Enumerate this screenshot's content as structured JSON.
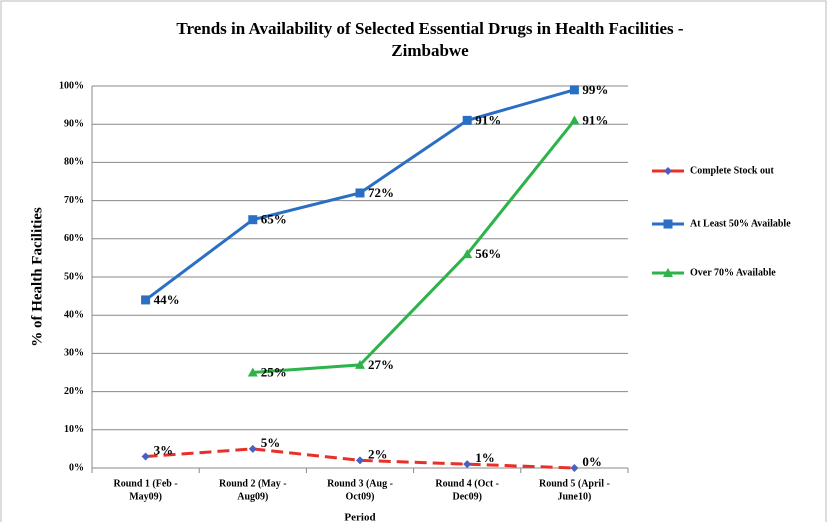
{
  "chart_data": {
    "type": "line",
    "title": [
      "Trends in Availability of Selected Essential Drugs in Health Facilities -",
      "Zimbabwe"
    ],
    "y_label": "% of Health Facilities",
    "x_label": "Period",
    "categories": [
      [
        "Round 1 (Feb -",
        "May09)"
      ],
      [
        "Round 2 (May -",
        "Aug09)"
      ],
      [
        "Round 3 (Aug -",
        "Oct09)"
      ],
      [
        "Round 4 (Oct -",
        "Dec09)"
      ],
      [
        "Round 5 (April -",
        "June10)"
      ]
    ],
    "series": [
      {
        "name": "Complete Stock out",
        "color": "#e8302a",
        "dash": true,
        "marker": "diamond",
        "marker_color": "#4a5fc1",
        "values": [
          3,
          5,
          2,
          1,
          0
        ],
        "value_labels": [
          "3%",
          "5%",
          "2%",
          "1%",
          "0%"
        ]
      },
      {
        "name": "At Least 50% Available",
        "color": "#2a6fc4",
        "marker": "square",
        "marker_color": "#2a6fc4",
        "values": [
          44,
          65,
          72,
          91,
          99
        ],
        "value_labels": [
          "44%",
          "65%",
          "72%",
          "91%",
          "99%"
        ]
      },
      {
        "name": "Over 70% Available",
        "color": "#2db34a",
        "marker": "triangle",
        "marker_color": "#2db34a",
        "values": [
          null,
          25,
          27,
          56,
          91
        ],
        "value_labels": [
          null,
          "25%",
          "27%",
          "56%",
          "91%"
        ]
      }
    ],
    "ylim": [
      0,
      100
    ],
    "yticks": [
      {
        "value": 0,
        "label": "0%"
      },
      {
        "value": 10,
        "label": "10%"
      },
      {
        "value": 20,
        "label": "20%"
      },
      {
        "value": 30,
        "label": "30%"
      },
      {
        "value": 40,
        "label": "40%"
      },
      {
        "value": 50,
        "label": "50%"
      },
      {
        "value": 60,
        "label": "60%"
      },
      {
        "value": 70,
        "label": "70%"
      },
      {
        "value": 80,
        "label": "80%"
      },
      {
        "value": 90,
        "label": "90%"
      },
      {
        "value": 100,
        "label": "100%"
      }
    ],
    "grid": true,
    "legend": "right"
  }
}
